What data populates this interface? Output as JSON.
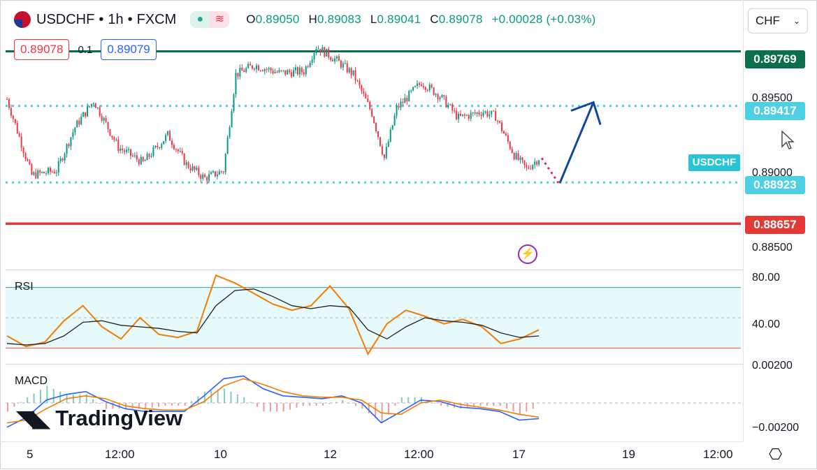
{
  "header": {
    "symbol": "USDCHF",
    "separator1": "•",
    "timeframe": "1h",
    "separator2": "•",
    "exchange": "FXCM",
    "open_label": "O",
    "open": "0.89050",
    "high_label": "H",
    "high": "0.89083",
    "low_label": "L",
    "low": "0.89041",
    "close_label": "C",
    "close": "0.89078",
    "change": "+0.00028 (+0.03%)"
  },
  "trade": {
    "sell": "0.89078",
    "spread": "0.1",
    "buy": "0.89079"
  },
  "currency_select": {
    "value": "CHF"
  },
  "price_axis": {
    "ticks": [
      "0.89500",
      "0.89000",
      "0.88500"
    ],
    "labels": [
      {
        "text": "0.89769",
        "color": "#0b6e4f"
      },
      {
        "text": "0.89417",
        "color": "#4dd0e1"
      },
      {
        "text": "0.88923",
        "color": "#4dd0e1"
      },
      {
        "text": "0.88657",
        "color": "#e53935"
      }
    ],
    "symbol_tag": "USDCHF"
  },
  "rsi": {
    "title": "RSI",
    "ticks": [
      "80.00",
      "40.00"
    ]
  },
  "macd": {
    "title": "MACD",
    "ticks": [
      "0.00200",
      "−0.00200"
    ]
  },
  "time_axis": {
    "ticks": [
      "5",
      "12:00",
      "10",
      "12",
      "12:00",
      "17",
      "19",
      "12:00"
    ]
  },
  "branding": {
    "logo": "TradingView"
  },
  "colors": {
    "up": "#089981",
    "down": "#f23645",
    "resistance": "#0b6e4f",
    "support": "#e53935",
    "level": "#4dd0e1",
    "arrow": "#0d47a1",
    "rsi": "#f57c00",
    "macd": "#2962ff",
    "signal": "#f57c00"
  },
  "chart_data": [
    {
      "type": "candlestick",
      "title": "USDCHF • 1h • FXCM",
      "ylim": [
        0.8837,
        0.8992
      ],
      "x_ticks": [
        "5",
        "12:00",
        "10",
        "12",
        "12:00",
        "17",
        "19",
        "12:00"
      ],
      "horizontal_levels": [
        0.89769,
        0.89417,
        0.88923,
        0.88657
      ],
      "close_path": [
        {
          "x": 0,
          "y": 0.8946
        },
        {
          "x": 4,
          "y": 0.8897
        },
        {
          "x": 8,
          "y": 0.89
        },
        {
          "x": 11,
          "y": 0.8928
        },
        {
          "x": 14,
          "y": 0.8945
        },
        {
          "x": 18,
          "y": 0.8915
        },
        {
          "x": 22,
          "y": 0.8905
        },
        {
          "x": 26,
          "y": 0.8923
        },
        {
          "x": 29,
          "y": 0.8904
        },
        {
          "x": 32,
          "y": 0.8895
        },
        {
          "x": 35,
          "y": 0.89
        },
        {
          "x": 37,
          "y": 0.8962
        },
        {
          "x": 40,
          "y": 0.8968
        },
        {
          "x": 44,
          "y": 0.8963
        },
        {
          "x": 48,
          "y": 0.8964
        },
        {
          "x": 50,
          "y": 0.898
        },
        {
          "x": 53,
          "y": 0.8972
        },
        {
          "x": 56,
          "y": 0.8962
        },
        {
          "x": 59,
          "y": 0.8937
        },
        {
          "x": 61,
          "y": 0.8908
        },
        {
          "x": 63,
          "y": 0.894
        },
        {
          "x": 67,
          "y": 0.8957
        },
        {
          "x": 70,
          "y": 0.8948
        },
        {
          "x": 73,
          "y": 0.8934
        },
        {
          "x": 77,
          "y": 0.8938
        },
        {
          "x": 79,
          "y": 0.8935
        },
        {
          "x": 82,
          "y": 0.891
        },
        {
          "x": 84,
          "y": 0.8901
        },
        {
          "x": 86,
          "y": 0.8908
        }
      ],
      "projection": {
        "from": 0.8908,
        "dip": 0.8892,
        "target": 0.8944
      }
    },
    {
      "type": "line",
      "title": "RSI",
      "ylim": [
        20,
        80
      ],
      "bands": [
        30,
        50,
        70
      ],
      "series": [
        {
          "values": [
            38,
            31,
            34,
            48,
            58,
            44,
            36,
            50,
            39,
            37,
            41,
            78,
            73,
            66,
            59,
            55,
            58,
            71,
            56,
            26,
            46,
            55,
            51,
            46,
            49,
            44,
            33,
            36,
            42
          ]
        },
        {
          "values": [
            33,
            32,
            33,
            38,
            47,
            48,
            45,
            44,
            43,
            41,
            40,
            58,
            68,
            69,
            64,
            58,
            56,
            58,
            57,
            42,
            36,
            44,
            50,
            48,
            47,
            45,
            40,
            37,
            38
          ]
        }
      ]
    },
    {
      "type": "line",
      "title": "MACD",
      "ylim": [
        -0.0026,
        0.0026
      ],
      "series": [
        {
          "values": [
            -0.0017,
            -0.001,
            0.0002,
            0.0006,
            0.0008,
            0.0001,
            -0.0004,
            -0.0006,
            -0.0006,
            -0.0006,
            0.0005,
            0.0017,
            0.0019,
            0.001,
            0.0005,
            0.0004,
            0.0003,
            0.0005,
            0.0,
            -0.0014,
            -0.0006,
            0.0002,
            0.0001,
            -0.0003,
            -0.0004,
            -0.0006,
            -0.0012,
            -0.0011
          ]
        },
        {
          "values": [
            -0.0014,
            -0.0012,
            -0.0004,
            0.0003,
            0.0005,
            0.0003,
            -0.0002,
            -0.0004,
            -0.0005,
            -0.0005,
            0.0001,
            0.0012,
            0.0017,
            0.0013,
            0.0008,
            0.0005,
            0.0004,
            0.0004,
            0.0002,
            -0.0007,
            -0.0008,
            0.0,
            0.0002,
            -0.0001,
            -0.0003,
            -0.0005,
            -0.0008,
            -0.001
          ]
        }
      ]
    }
  ]
}
